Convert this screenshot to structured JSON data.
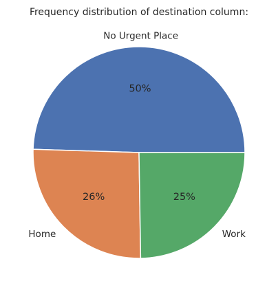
{
  "chart_data": {
    "type": "pie",
    "title": "Frequency distribution of destination column:",
    "slices": [
      {
        "label": "No Urgent Place",
        "value": 50,
        "display": "50%",
        "color": "#4c72b0"
      },
      {
        "label": "Home",
        "value": 26,
        "display": "26%",
        "color": "#dd8452"
      },
      {
        "label": "Work",
        "value": 25,
        "display": "25%",
        "color": "#55a868"
      }
    ],
    "start_angle_deg": 0,
    "direction": "counterclockwise",
    "legend": "none"
  }
}
